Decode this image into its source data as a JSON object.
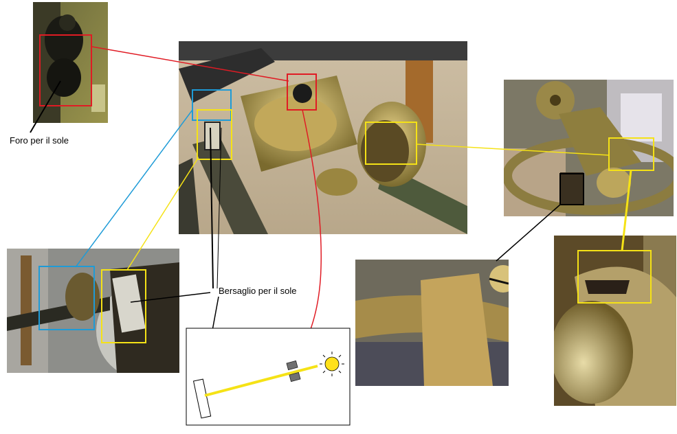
{
  "labels": {
    "sun_hole": "Foro per il sole",
    "sun_target": "Bersaglio per il sole"
  },
  "photos": {
    "top_left": "close-up of sun hole",
    "center": "instrument main view",
    "right_top": "ring with sight",
    "left_bottom": "side view with target plate",
    "bottom_mid": "scale close-up",
    "right_bottom": "sight close-up"
  },
  "colors": {
    "red": "#e01b24",
    "blue": "#1e9bd7",
    "yellow": "#f5e216",
    "black": "#000000",
    "sun": "#ffe11a"
  }
}
